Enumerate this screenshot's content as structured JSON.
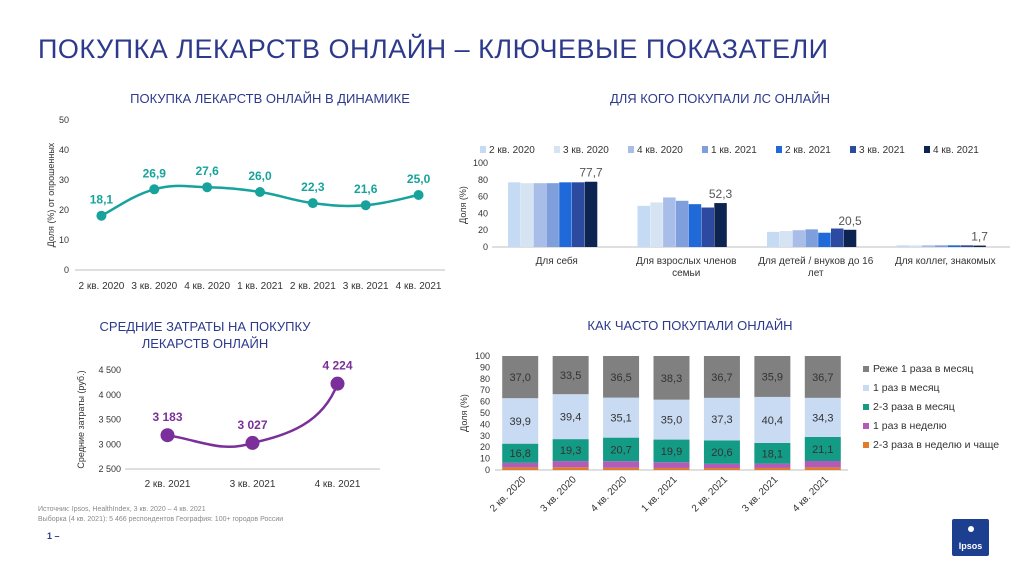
{
  "page_title": "ПОКУПКА ЛЕКАРСТВ ОНЛАЙН – КЛЮЧЕВЫЕ ПОКАЗАТЕЛИ",
  "colors": {
    "title": "#2d3a8c",
    "teal": "#17a39c",
    "purple": "#7b2f9a",
    "axis": "#bfbfbf"
  },
  "chart_data": [
    {
      "id": "dynamics",
      "type": "line",
      "title": "ПОКУПКА ЛЕКАРСТВ ОНЛАЙН В ДИНАМИКЕ",
      "ylabel": "Доля (%) от опрошенных",
      "categories": [
        "2 кв. 2020",
        "3 кв. 2020",
        "4 кв. 2020",
        "1 кв. 2021",
        "2 кв. 2021",
        "3 кв. 2021",
        "4 кв. 2021"
      ],
      "values": [
        18.1,
        26.9,
        27.6,
        26.0,
        22.3,
        21.6,
        25.0
      ],
      "labels": [
        "18,1",
        "26,9",
        "27,6",
        "26,0",
        "22,3",
        "21,6",
        "25,0"
      ],
      "ylim": [
        0,
        50
      ],
      "yticks": [
        "0",
        "10",
        "20",
        "30",
        "40",
        "50"
      ]
    },
    {
      "id": "for_whom",
      "type": "bar",
      "title": "ДЛЯ КОГО ПОКУПАЛИ ЛС ОНЛАЙН",
      "ylabel": "Доля (%)",
      "legend": "top",
      "categories": [
        "Для себя",
        "Для взрослых членов семьи",
        "Для детей / внуков до 16 лет",
        "Для коллег, знакомых"
      ],
      "category_lines": [
        [
          "Для себя"
        ],
        [
          "Для взрослых членов",
          "семьи"
        ],
        [
          "Для детей / внуков до 16",
          "лет"
        ],
        [
          "Для коллег, знакомых"
        ]
      ],
      "series": [
        {
          "name": "2 кв. 2020",
          "color": "#c5dbf4",
          "values": [
            77,
            49,
            18,
            2
          ]
        },
        {
          "name": "3 кв. 2020",
          "color": "#d6e3f2",
          "values": [
            76,
            53,
            19,
            2
          ]
        },
        {
          "name": "4 кв. 2020",
          "color": "#a8bde8",
          "values": [
            76,
            59,
            20,
            2
          ]
        },
        {
          "name": "1 кв. 2021",
          "color": "#7e9fdc",
          "values": [
            76,
            55,
            21,
            2
          ]
        },
        {
          "name": "2 кв. 2021",
          "color": "#1f6ad8",
          "values": [
            77,
            51,
            17,
            2
          ]
        },
        {
          "name": "3 кв. 2021",
          "color": "#2b4aa0",
          "values": [
            77,
            47,
            22,
            2
          ]
        },
        {
          "name": "4 кв. 2021",
          "color": "#0e2450",
          "values": [
            77.7,
            52.3,
            20.5,
            1.7
          ]
        }
      ],
      "last_labels": [
        "77,7",
        "52,3",
        "20,5",
        "1,7"
      ],
      "ylim": [
        0,
        100
      ],
      "yticks": [
        "0",
        "20",
        "40",
        "60",
        "80",
        "100"
      ]
    },
    {
      "id": "spending",
      "type": "line",
      "title": "СРЕДНИЕ ЗАТРАТЫ НА ПОКУПКУ ЛЕКАРСТВ ОНЛАЙН",
      "ylabel": "Средние затраты (руб.)",
      "categories": [
        "2 кв. 2021",
        "3 кв. 2021",
        "4 кв. 2021"
      ],
      "values": [
        3183,
        3027,
        4224
      ],
      "labels": [
        "3 183",
        "3 027",
        "4 224"
      ],
      "ylim": [
        2500,
        4500
      ],
      "yticks": [
        "2 500",
        "3 000",
        "3 500",
        "4 000",
        "4 500"
      ]
    },
    {
      "id": "frequency",
      "type": "bar",
      "stacked": true,
      "title": "КАК ЧАСТО ПОКУПАЛИ ОНЛАЙН",
      "ylabel": "Доля (%)",
      "legend": "right",
      "categories": [
        "2 кв. 2020",
        "3 кв. 2020",
        "4 кв. 2020",
        "1 кв. 2021",
        "2 кв. 2021",
        "3 кв. 2021",
        "4 кв. 2021"
      ],
      "series": [
        {
          "name": "2-3 раза в неделю и чаще",
          "color": "#e07b28",
          "values": [
            2.3,
            2.4,
            1.9,
            1.8,
            1.7,
            1.8,
            2.3
          ],
          "labels": [
            "",
            "",
            "",
            "",
            "",
            "",
            ""
          ]
        },
        {
          "name": "1 раз в неделю",
          "color": "#b25bb8",
          "values": [
            4.0,
            5.4,
            5.8,
            5.0,
            3.7,
            3.8,
            5.6
          ],
          "labels": [
            "",
            "",
            "",
            "",
            "",
            "",
            ""
          ]
        },
        {
          "name": "2-3 раза в месяц",
          "color": "#149b86",
          "values": [
            16.8,
            19.3,
            20.7,
            19.9,
            20.6,
            18.1,
            21.1
          ],
          "labels": [
            "16,8",
            "19,3",
            "20,7",
            "19,9",
            "20,6",
            "18,1",
            "21,1"
          ]
        },
        {
          "name": "1 раз в месяц",
          "color": "#c9dbf3",
          "values": [
            39.9,
            39.4,
            35.1,
            35.0,
            37.3,
            40.4,
            34.3
          ],
          "labels": [
            "39,9",
            "39,4",
            "35,1",
            "35,0",
            "37,3",
            "40,4",
            "34,3"
          ]
        },
        {
          "name": "Реже 1 раза в месяц",
          "color": "#808080",
          "values": [
            37.0,
            33.5,
            36.5,
            38.3,
            36.7,
            35.9,
            36.7
          ],
          "labels": [
            "37,0",
            "33,5",
            "36,5",
            "38,3",
            "36,7",
            "35,9",
            "36,7"
          ]
        }
      ],
      "ylim": [
        0,
        100
      ],
      "yticks": [
        "0",
        "10",
        "20",
        "30",
        "40",
        "50",
        "60",
        "70",
        "80",
        "90",
        "100"
      ]
    }
  ],
  "source_line1": "Источник: Ipsos, HealthIndex, 3 кв. 2020 – 4 кв. 2021",
  "source_line2": "Выборка (4 кв. 2021): 5 466 респондентов  География: 100+ городов России",
  "page_number": "1",
  "logo_text": "Ipsos"
}
